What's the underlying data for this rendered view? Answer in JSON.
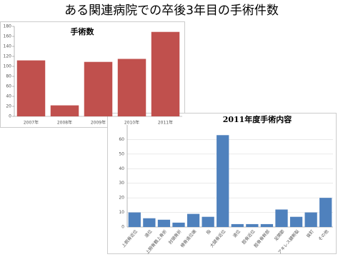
{
  "title": "ある関連病院での卒後3年目の手術件数",
  "chart_data": [
    {
      "type": "bar",
      "title": "手術数",
      "categories": [
        "2007年",
        "2008年",
        "2009年",
        "2010年",
        "2011年"
      ],
      "values": [
        112,
        22,
        109,
        115,
        169
      ],
      "color": "#c0504d",
      "ylim": [
        0,
        180
      ],
      "yticks": [
        0,
        20,
        40,
        60,
        80,
        100,
        120,
        140,
        160,
        180
      ],
      "grid": false
    },
    {
      "type": "bar",
      "title": "2011年度手術内容",
      "categories": [
        "上腕骨近位",
        "遠位",
        "上腕骨顆上骨折",
        "肘頭骨折",
        "橈骨遠位端",
        "指",
        "大腿骨近位",
        "遠位",
        "脛骨近位",
        "脛骨骨幹部",
        "足関節",
        "アキレス腱断裂",
        "抜釘",
        "その他"
      ],
      "values": [
        10,
        6,
        5,
        3,
        9,
        7,
        63,
        2,
        2,
        2,
        12,
        7,
        10,
        20
      ],
      "color": "#4f81bd",
      "ylim": [
        0,
        70
      ],
      "yticks": [
        0,
        10,
        20,
        30,
        40,
        50,
        60
      ],
      "grid": true
    }
  ]
}
